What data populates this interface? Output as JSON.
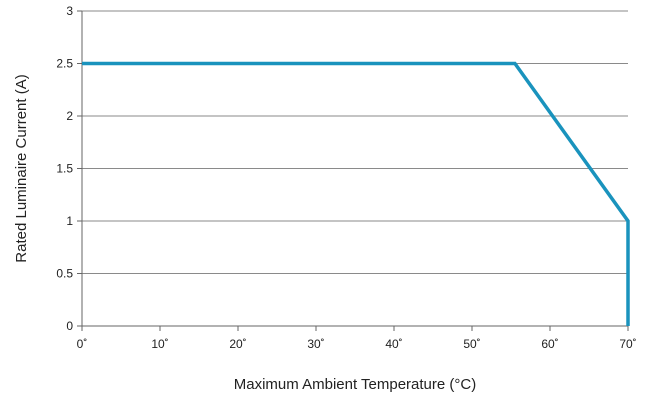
{
  "chart_data": {
    "type": "line",
    "xlabel": "Maximum Ambient Temperature (°C)",
    "ylabel": "Rated Luminaire Current (A)",
    "xlim": [
      0,
      70
    ],
    "ylim": [
      0,
      3
    ],
    "x_ticks": [
      0,
      10,
      20,
      30,
      40,
      50,
      60,
      70
    ],
    "x_tick_labels": [
      "0˚",
      "10˚",
      "20˚",
      "30˚",
      "40˚",
      "50˚",
      "60˚",
      "70˚"
    ],
    "y_ticks": [
      0,
      0.5,
      1,
      1.5,
      2,
      2.5,
      3
    ],
    "y_tick_labels": [
      "0",
      "0.5",
      "1",
      "1.5",
      "2",
      "2.5",
      "3"
    ],
    "grid": "horizontal",
    "legend": "none",
    "series": [
      {
        "color": "#1a93bd",
        "points": [
          [
            0,
            2.5
          ],
          [
            55.5,
            2.5
          ],
          [
            70,
            1
          ],
          [
            70,
            0
          ]
        ]
      }
    ]
  }
}
